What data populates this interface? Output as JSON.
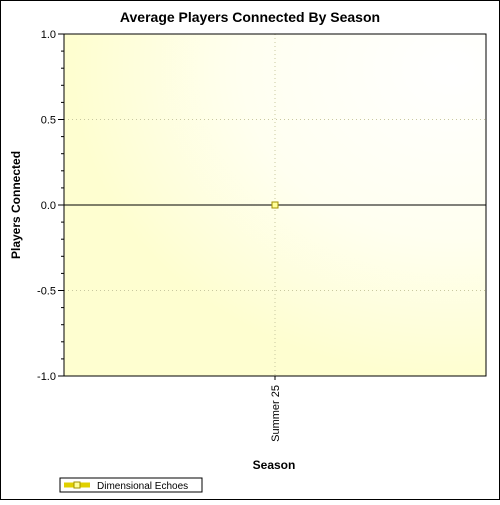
{
  "chart_data": {
    "type": "line",
    "title": "Average Players Connected By Season",
    "xlabel": "Season",
    "ylabel": "Players Connected",
    "categories": [
      "Summer 25"
    ],
    "series": [
      {
        "name": "Dimensional Echoes",
        "values": [
          0.0
        ]
      }
    ],
    "ylim": [
      -1.0,
      1.0
    ],
    "y_ticks": [
      "1.0",
      "0.5",
      "0.0",
      "-0.5",
      "-1.0"
    ],
    "grid": true,
    "legend_position": "bottom-left",
    "colors": {
      "plot_background": "#ffffd0",
      "series": "#e0d000",
      "marker_fill": "#ffff99",
      "grid": "#c8c8a0",
      "frame": "#000000"
    }
  }
}
